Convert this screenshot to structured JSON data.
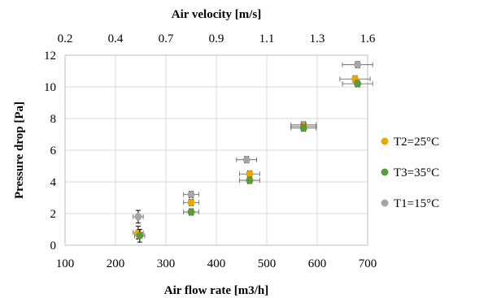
{
  "chart_data": {
    "type": "scatter",
    "xlabel": "Air flow rate [m3/h]",
    "ylabel": "Pressure drop [Pa]",
    "x2label": "Air velocity [m/s]",
    "xlim": [
      100,
      700
    ],
    "ylim": [
      0,
      12
    ],
    "x2lim": [
      0.2,
      1.6
    ],
    "xticks": [
      "100",
      "200",
      "300",
      "400",
      "500",
      "600",
      "700"
    ],
    "yticks": [
      "0",
      "2",
      "4",
      "6",
      "8",
      "10",
      "12"
    ],
    "x2ticks": [
      "0.2",
      "0.4",
      "0.7",
      "0.9",
      "1.1",
      "1.3",
      "1.6"
    ],
    "grid": true,
    "legend_position": "right",
    "error_bars": true,
    "series": [
      {
        "name": "T1=15°C",
        "color": "#a5a5a5",
        "points": [
          {
            "x": 245,
            "y": 1.8,
            "xerr": 10,
            "yerr": 0.4
          },
          {
            "x": 350,
            "y": 3.2,
            "xerr": 15,
            "yerr": 0.2
          },
          {
            "x": 460,
            "y": 5.4,
            "xerr": 20,
            "yerr": 0.2
          },
          {
            "x": 573,
            "y": 7.6,
            "xerr": 25,
            "yerr": 0.2
          },
          {
            "x": 680,
            "y": 11.4,
            "xerr": 30,
            "yerr": 0.2
          }
        ]
      },
      {
        "name": "T2=25°C",
        "color": "#e8a800",
        "points": [
          {
            "x": 245,
            "y": 0.8,
            "xerr": 10,
            "yerr": 0.4
          },
          {
            "x": 350,
            "y": 2.7,
            "xerr": 15,
            "yerr": 0.2
          },
          {
            "x": 466,
            "y": 4.5,
            "xerr": 20,
            "yerr": 0.2
          },
          {
            "x": 573,
            "y": 7.5,
            "xerr": 25,
            "yerr": 0.2
          },
          {
            "x": 675,
            "y": 10.5,
            "xerr": 30,
            "yerr": 0.2
          }
        ]
      },
      {
        "name": "T3=35°C",
        "color": "#5b9b3a",
        "points": [
          {
            "x": 248,
            "y": 0.6,
            "xerr": 10,
            "yerr": 0.4
          },
          {
            "x": 350,
            "y": 2.1,
            "xerr": 15,
            "yerr": 0.2
          },
          {
            "x": 466,
            "y": 4.1,
            "xerr": 20,
            "yerr": 0.2
          },
          {
            "x": 573,
            "y": 7.4,
            "xerr": 25,
            "yerr": 0.2
          },
          {
            "x": 680,
            "y": 10.2,
            "xerr": 30,
            "yerr": 0.2
          }
        ]
      }
    ],
    "legend": [
      {
        "name": "T2=25°C",
        "color": "#e8a800"
      },
      {
        "name": "T3=35°C",
        "color": "#5b9b3a"
      },
      {
        "name": "T1=15°C",
        "color": "#a5a5a5"
      }
    ]
  }
}
